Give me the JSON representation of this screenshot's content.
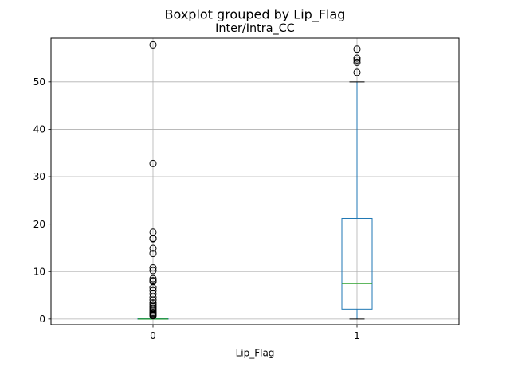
{
  "chart_data": {
    "type": "boxplot",
    "suptitle": "Boxplot grouped by Lip_Flag",
    "title": "Inter/Intra_CC",
    "xlabel": "Lip_Flag",
    "ylabel": "",
    "categories": [
      "0",
      "1"
    ],
    "ylim": [
      -1.2,
      59.2
    ],
    "yticks": [
      0,
      10,
      20,
      30,
      40,
      50
    ],
    "grid": true,
    "colors": {
      "box": "#1f77b4",
      "median": "#2ca02c",
      "whisker_cap": "#000000",
      "flier": "#000000",
      "grid": "#b0b0b0"
    },
    "boxes": [
      {
        "category": "0",
        "whislo": 0,
        "q1": 0,
        "med": 0,
        "q3": 0.1,
        "whishi": 0.2,
        "fliers": [
          57.8,
          32.8,
          18.3,
          17,
          16.9,
          14.9,
          13.8,
          10.8,
          10.2,
          8.5,
          8.1,
          7.9,
          6.6,
          6,
          5.3,
          4.6,
          4,
          3.4,
          3,
          2.6,
          2.3,
          2,
          1.7,
          1.4,
          1.2,
          1,
          0.9,
          0.8,
          0.7
        ]
      },
      {
        "category": "1",
        "whislo": 0,
        "q1": 2.1,
        "med": 7.5,
        "q3": 21.2,
        "whishi": 50,
        "fliers": [
          52,
          54.1,
          54.6,
          55,
          56.9
        ]
      }
    ]
  }
}
